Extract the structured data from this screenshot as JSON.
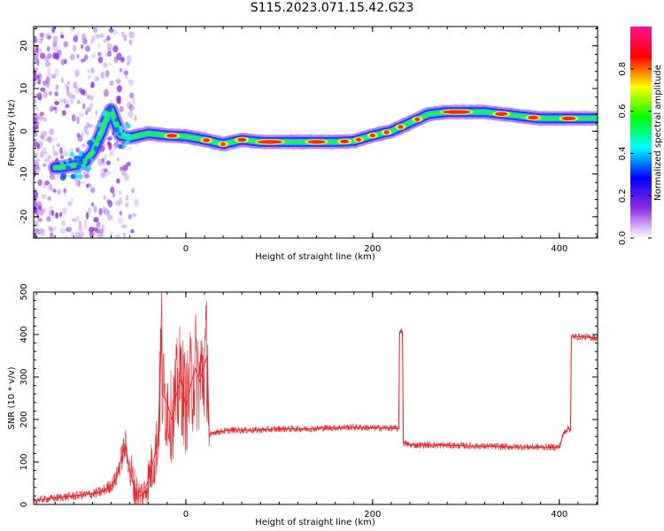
{
  "title": "S115.2023.071.15.42.G23",
  "chart_data": [
    {
      "type": "heatmap",
      "xlabel": "Height of straight line (km)",
      "ylabel": "Frequency (Hz)",
      "xlim": [
        -163,
        441
      ],
      "ylim": [
        -25,
        24.5
      ],
      "xticks": [
        0,
        200,
        400
      ],
      "yticks": [
        -20,
        -10,
        0,
        10,
        20
      ],
      "colorbar": {
        "label": "Normalized spectral amplitude",
        "range": [
          0,
          1
        ],
        "ticks": [
          "0.0",
          "0.2",
          "0.4",
          "0.6",
          "0.8"
        ],
        "colors": [
          "#ffffff",
          "#8a2be2",
          "#0000ff",
          "#00ffff",
          "#00ff00",
          "#ffff00",
          "#ff0000",
          "#ff1493"
        ]
      },
      "ridge": {
        "x": [
          -135,
          -120,
          -110,
          -100,
          -90,
          -85,
          -80,
          -70,
          -60,
          -50,
          -40,
          -20,
          0,
          20,
          40,
          60,
          80,
          100,
          120,
          140,
          160,
          180,
          200,
          220,
          240,
          260,
          280,
          300,
          320,
          340,
          360,
          380,
          400,
          420,
          441
        ],
        "y": [
          -8.5,
          -8,
          -7.5,
          -5,
          0,
          3,
          5,
          -1,
          -1.5,
          -1,
          -0.5,
          -1,
          -1.2,
          -2,
          -3,
          -2,
          -2.5,
          -2.5,
          -2.5,
          -2.5,
          -2.5,
          -2.3,
          -1,
          0,
          2,
          4,
          4.5,
          4.5,
          4.5,
          4,
          3.5,
          3,
          3,
          3,
          3
        ]
      }
    },
    {
      "type": "line",
      "xlabel": "Height of straight line (km)",
      "ylabel": "SNR (10 * v/v)",
      "xlim": [
        -163,
        441
      ],
      "ylim": [
        0,
        500
      ],
      "xticks": [
        0,
        200,
        400
      ],
      "yticks": [
        0,
        100,
        200,
        300,
        400,
        500
      ],
      "series": [
        {
          "color": "#e8282c",
          "x": [
            -163,
            -140,
            -120,
            -100,
            -90,
            -80,
            -75,
            -70,
            -65,
            -60,
            -55,
            -50,
            -45,
            -40,
            -35,
            -30,
            -28,
            -26,
            -25,
            -20,
            -15,
            -10,
            -5,
            0,
            5,
            10,
            15,
            20,
            23,
            25,
            30,
            50,
            80,
            100,
            130,
            150,
            180,
            200,
            220,
            228,
            229,
            230,
            231,
            232,
            233,
            240,
            260,
            300,
            340,
            380,
            400,
            405,
            410,
            412,
            413,
            420,
            441
          ],
          "y": [
            10,
            15,
            20,
            25,
            30,
            45,
            60,
            100,
            140,
            80,
            40,
            20,
            25,
            60,
            100,
            150,
            260,
            420,
            260,
            240,
            200,
            260,
            300,
            230,
            280,
            320,
            290,
            330,
            350,
            160,
            170,
            175,
            175,
            178,
            178,
            180,
            182,
            180,
            180,
            178,
            405,
            410,
            410,
            405,
            145,
            140,
            140,
            138,
            136,
            135,
            135,
            170,
            180,
            175,
            395,
            395,
            392
          ]
        }
      ]
    }
  ]
}
